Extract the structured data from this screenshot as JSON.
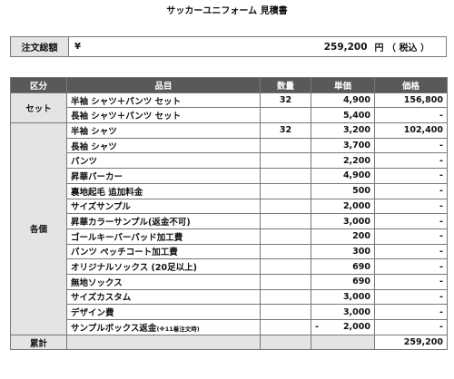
{
  "title": "サッカーユニフォーム 見積書",
  "order": {
    "label": "注文総額",
    "yen_mark": "¥",
    "amount": "259,200",
    "unit": "円 （ 税込 ）"
  },
  "table": {
    "headers": [
      "区分",
      "品目",
      "数量",
      "単価",
      "価格"
    ],
    "groups": [
      {
        "category": "セット",
        "rows": [
          {
            "item": "半袖 シャツ＋パンツ セット",
            "qty": "32",
            "price": "4,900",
            "amount": "156,800"
          },
          {
            "item": "長袖 シャツ＋パンツ セット",
            "qty": "",
            "price": "5,400",
            "amount": "-"
          }
        ]
      },
      {
        "category": "各個",
        "rows": [
          {
            "item": "半袖 シャツ",
            "qty": "32",
            "price": "3,200",
            "amount": "102,400"
          },
          {
            "item": "長袖 シャツ",
            "qty": "",
            "price": "3,700",
            "amount": "-"
          },
          {
            "item": "パンツ",
            "qty": "",
            "price": "2,200",
            "amount": "-"
          },
          {
            "item": "昇華パーカー",
            "qty": "",
            "price": "4,900",
            "amount": "-"
          },
          {
            "item": "裏地起毛 追加料金",
            "qty": "",
            "price": "500",
            "amount": "-"
          },
          {
            "item": "サイズサンプル",
            "qty": "",
            "price": "2,000",
            "amount": "-"
          },
          {
            "item": "昇華カラーサンプル(返金不可)",
            "qty": "",
            "price": "3,000",
            "amount": "-"
          },
          {
            "item": "ゴールキーパーパッド加工費",
            "qty": "",
            "price": "200",
            "amount": "-"
          },
          {
            "item": "パンツ ペッチコート加工費",
            "qty": "",
            "price": "300",
            "amount": "-"
          },
          {
            "item": "オリジナルソックス (20足以上)",
            "qty": "",
            "price": "690",
            "amount": "-"
          },
          {
            "item": "無地ソックス",
            "qty": "",
            "price": "690",
            "amount": "-"
          },
          {
            "item": "サイズカスタム",
            "qty": "",
            "price": "3,000",
            "amount": "-"
          },
          {
            "item": "デザイン費",
            "qty": "",
            "price": "3,000",
            "amount": "-"
          },
          {
            "item": "サンプルボックス返金",
            "note": "(※11着注文時)",
            "qty": "",
            "price_prefix": "-",
            "price": "2,000",
            "amount": "-"
          }
        ]
      }
    ],
    "total": {
      "label": "累計",
      "amount": "259,200"
    }
  },
  "colors": {
    "header_bg": "#595959",
    "category_bg": "#e4e4e4",
    "border": "#777777"
  }
}
